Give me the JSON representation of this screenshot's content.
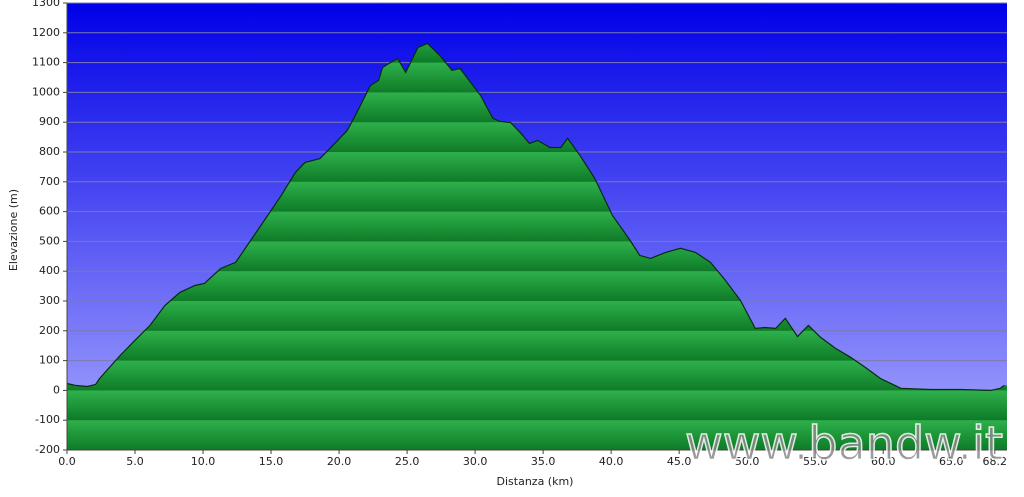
{
  "chart_data": {
    "type": "area",
    "x_label": "Distanza (km)",
    "y_label": "Elevazione (m)",
    "watermark": "www.bandw.it",
    "color": "#1e9b3a",
    "line_color": "#0a2a10",
    "grid": true,
    "x": [
      0,
      0.6,
      1.5,
      2.1,
      2.4,
      3.9,
      5.0,
      6.1,
      7.2,
      8.3,
      9.4,
      10.1,
      11.3,
      12.4,
      13.5,
      14.6,
      15.7,
      16.8,
      17.5,
      18.6,
      19.9,
      20.6,
      21.2,
      22.3,
      22.9,
      23.2,
      24.3,
      24.9,
      25.8,
      26.5,
      27.4,
      28.3,
      28.9,
      30.4,
      31.3,
      31.8,
      32.6,
      33.3,
      34.0,
      34.6,
      35.5,
      36.3,
      36.8,
      37.7,
      38.8,
      40.1,
      41.4,
      42.1,
      42.9,
      44.0,
      45.1,
      46.2,
      47.3,
      48.4,
      49.5,
      50.6,
      51.3,
      52.1,
      52.8,
      53.7,
      54.5,
      55.4,
      56.5,
      57.6,
      58.7,
      59.8,
      61.3,
      63.5,
      65.7,
      67.9,
      68.6,
      68.9
    ],
    "values": [
      23,
      17,
      13,
      20,
      40,
      117,
      168,
      218,
      285,
      329,
      352,
      359,
      409,
      430,
      503,
      577,
      651,
      732,
      765,
      778,
      839,
      872,
      923,
      1023,
      1040,
      1084,
      1114,
      1067,
      1151,
      1164,
      1124,
      1074,
      1080,
      990,
      913,
      903,
      899,
      866,
      829,
      839,
      815,
      815,
      846,
      789,
      711,
      587,
      503,
      453,
      443,
      463,
      477,
      463,
      430,
      369,
      302,
      208,
      211,
      208,
      242,
      181,
      218,
      178,
      141,
      111,
      77,
      40,
      7,
      3,
      3,
      0,
      7,
      17
    ],
    "xlim": [
      0,
      69.1
    ],
    "ylim": [
      -200,
      1300
    ],
    "xticks": [
      {
        "value": 0,
        "label": "0.0"
      },
      {
        "value": 5,
        "label": "5.0"
      },
      {
        "value": 10,
        "label": "10.0"
      },
      {
        "value": 15,
        "label": "15.0"
      },
      {
        "value": 20,
        "label": "20.0"
      },
      {
        "value": 25,
        "label": "25.0"
      },
      {
        "value": 30,
        "label": "30.0"
      },
      {
        "value": 35,
        "label": "35.0"
      },
      {
        "value": 40,
        "label": "40.0"
      },
      {
        "value": 45,
        "label": "45.0"
      },
      {
        "value": 50,
        "label": "50.0"
      },
      {
        "value": 55,
        "label": "55.0"
      },
      {
        "value": 60,
        "label": "60.0"
      },
      {
        "value": 65,
        "label": "65.0"
      },
      68.2
    ],
    "yticks": [
      -200,
      -100,
      0,
      100,
      200,
      300,
      400,
      500,
      600,
      700,
      800,
      900,
      1000,
      1100,
      1200,
      1300
    ]
  }
}
